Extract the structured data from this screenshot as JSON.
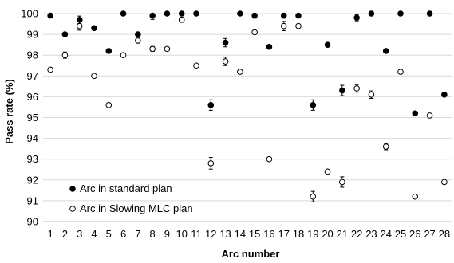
{
  "chart_data": {
    "type": "scatter",
    "xlabel": "Arc number",
    "ylabel": "Pass rate (%)",
    "ylim": [
      90,
      100
    ],
    "xlim": [
      0.5,
      28.5
    ],
    "y_ticks": [
      90,
      91,
      92,
      93,
      94,
      95,
      96,
      97,
      98,
      99,
      100
    ],
    "x_ticks": [
      1,
      2,
      3,
      4,
      5,
      6,
      7,
      8,
      9,
      10,
      11,
      12,
      13,
      14,
      15,
      16,
      17,
      18,
      19,
      20,
      21,
      22,
      23,
      24,
      25,
      26,
      27,
      28
    ],
    "grid": "horizontal",
    "legend_position": "bottom-left",
    "series": [
      {
        "name": "Arc in standard plan",
        "marker": "filled-circle",
        "color": "#000000",
        "x": [
          1,
          2,
          3,
          4,
          5,
          6,
          7,
          8,
          9,
          10,
          11,
          12,
          13,
          14,
          15,
          16,
          17,
          18,
          19,
          20,
          21,
          22,
          23,
          24,
          25,
          26,
          27,
          28
        ],
        "y": [
          99.9,
          99.0,
          99.7,
          99.3,
          98.2,
          100.0,
          99.0,
          99.9,
          100.0,
          100.0,
          100.0,
          95.6,
          98.6,
          100.0,
          99.9,
          98.4,
          99.9,
          99.9,
          95.6,
          98.5,
          96.3,
          99.8,
          100.0,
          98.2,
          100.0,
          95.2,
          100.0,
          96.1
        ],
        "error": [
          0,
          0.08,
          0.18,
          0,
          0.08,
          0,
          0,
          0.18,
          0,
          0,
          0,
          0.25,
          0.2,
          0,
          0.12,
          0,
          0.12,
          0,
          0.25,
          0,
          0.25,
          0.15,
          0,
          0,
          0,
          0.1,
          0,
          0
        ]
      },
      {
        "name": "Arc in Slowing MLC plan",
        "marker": "open-circle",
        "color": "#000000",
        "x": [
          1,
          2,
          3,
          4,
          5,
          6,
          7,
          8,
          9,
          10,
          11,
          12,
          13,
          14,
          15,
          16,
          17,
          18,
          19,
          20,
          21,
          22,
          23,
          24,
          25,
          26,
          27,
          28
        ],
        "y": [
          97.3,
          98.0,
          99.4,
          97.0,
          95.6,
          98.0,
          98.7,
          98.3,
          98.3,
          99.7,
          97.5,
          92.8,
          97.7,
          97.2,
          99.1,
          93.0,
          99.4,
          99.4,
          91.2,
          92.4,
          91.9,
          96.4,
          96.1,
          93.6,
          97.2,
          91.2,
          95.1,
          91.9
        ],
        "error": [
          0,
          0.15,
          0.2,
          0,
          0,
          0,
          0.12,
          0.12,
          0,
          0.12,
          0,
          0.28,
          0.2,
          0.1,
          0,
          0,
          0.22,
          0,
          0.25,
          0,
          0.25,
          0.18,
          0.18,
          0.15,
          0,
          0,
          0,
          0
        ]
      }
    ]
  }
}
